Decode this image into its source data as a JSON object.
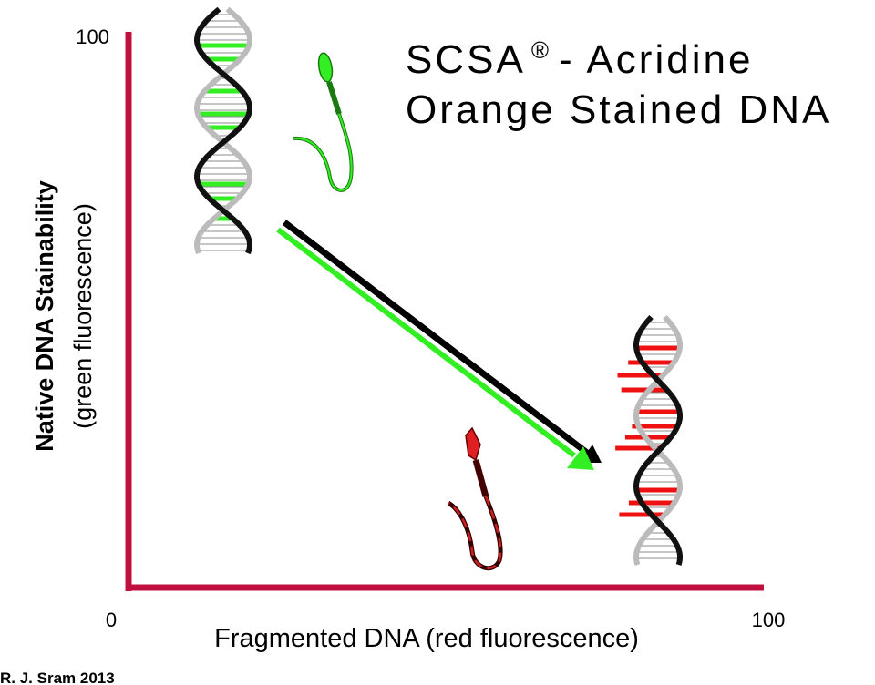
{
  "title": {
    "line1_a": "SCSA",
    "mark": "®",
    "line1_b": "- Acridine",
    "line2": "Orange Stained DNA"
  },
  "y_axis": {
    "label_line1": "Native DNA Stainability",
    "label_line2": "(green fluorescence)",
    "max_label": "100"
  },
  "x_axis": {
    "label": "Fragmented DNA (red fluorescence)",
    "min_label": "0",
    "max_label": "100"
  },
  "credit": "R. J. Sram 2013"
}
